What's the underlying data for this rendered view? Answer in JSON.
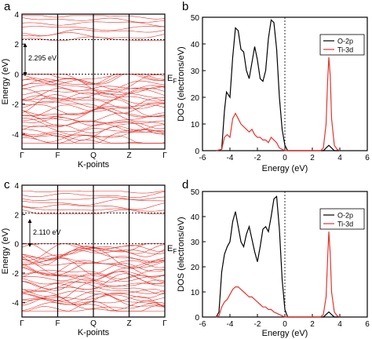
{
  "chart_data": [
    {
      "type": "line",
      "panel_letter": "a",
      "xlabel": "K-points",
      "ylabel": "Energy (eV)",
      "ylim": [
        -5,
        4
      ],
      "yticks": [
        -4,
        -2,
        0,
        2,
        4
      ],
      "k_labels": [
        "Γ",
        "F",
        "Q",
        "Z",
        "Γ"
      ],
      "band_gap_label": "2.295 eV",
      "band_gap": 2.295,
      "fermi_label": "E",
      "fermi_subscript": "F",
      "cbm": 2.295,
      "vbm": 0,
      "vb_range": [
        -4.6,
        0
      ],
      "cb_range": [
        2.3,
        3.9
      ],
      "line_color": "#e8322a"
    },
    {
      "type": "line",
      "panel_letter": "b",
      "xlabel": "Energy (eV)",
      "ylabel": "DOS (electrons/eV)",
      "xlim": [
        -6,
        6
      ],
      "ylim": [
        0,
        50
      ],
      "xticks": [
        -6,
        -4,
        -2,
        0,
        2,
        4,
        6
      ],
      "yticks": [
        0,
        10,
        20,
        30,
        40,
        50
      ],
      "legend_position": "top-right",
      "series": [
        {
          "name": "O-2p",
          "color": "#000000",
          "x": [
            -5.0,
            -4.6,
            -4.4,
            -4.25,
            -4.0,
            -3.8,
            -3.6,
            -3.4,
            -3.2,
            -3.0,
            -2.8,
            -2.6,
            -2.4,
            -2.2,
            -2.0,
            -1.8,
            -1.6,
            -1.4,
            -1.2,
            -1.0,
            -0.8,
            -0.6,
            -0.4,
            -0.2,
            0.0,
            0.2,
            0.4,
            2.8,
            3.0,
            3.2,
            3.4,
            3.6,
            4.0
          ],
          "y": [
            0,
            0.5,
            15,
            22,
            20,
            35,
            46,
            45,
            38,
            37,
            30,
            27,
            33,
            39,
            34,
            27,
            26,
            30,
            42,
            49,
            48,
            38,
            20,
            8,
            2,
            0,
            0,
            0,
            1,
            2,
            1,
            0,
            0
          ]
        },
        {
          "name": "Ti-3d",
          "color": "#e8322a",
          "x": [
            -5.0,
            -4.6,
            -4.4,
            -4.2,
            -4.0,
            -3.8,
            -3.6,
            -3.4,
            -3.2,
            -3.0,
            -2.8,
            -2.6,
            -2.4,
            -2.2,
            -2.0,
            -1.8,
            -1.6,
            -1.4,
            -1.2,
            -1.0,
            -0.8,
            -0.6,
            -0.4,
            -0.2,
            0.0,
            2.6,
            2.8,
            3.0,
            3.1,
            3.2,
            3.3,
            3.4,
            3.6,
            3.8,
            4.0
          ],
          "y": [
            0,
            0.5,
            5,
            6,
            5,
            12,
            14,
            12,
            10,
            9,
            8,
            7,
            8,
            6,
            5,
            5,
            4,
            4,
            3,
            5,
            4,
            3,
            1,
            0.5,
            0,
            0,
            1,
            10,
            25,
            35,
            28,
            12,
            2,
            0.5,
            0
          ]
        }
      ]
    },
    {
      "type": "line",
      "panel_letter": "c",
      "xlabel": "K-points",
      "ylabel": "Energy (eV)",
      "ylim": [
        -5,
        4
      ],
      "yticks": [
        -4,
        -2,
        0,
        2,
        4
      ],
      "k_labels": [
        "Γ",
        "F",
        "Q",
        "Z",
        "Γ"
      ],
      "band_gap_label": "2.110 eV",
      "band_gap": 2.11,
      "fermi_label": "E",
      "fermi_subscript": "F",
      "cbm": 2.11,
      "vbm": 0,
      "vb_range": [
        -4.6,
        0
      ],
      "cb_range": [
        2.1,
        3.6
      ],
      "line_color": "#e8322a"
    },
    {
      "type": "line",
      "panel_letter": "d",
      "xlabel": "Energy (eV)",
      "ylabel": "DOS (electrons/eV)",
      "xlim": [
        -6,
        6
      ],
      "ylim": [
        0,
        50
      ],
      "xticks": [
        -6,
        -4,
        -2,
        0,
        2,
        4,
        6
      ],
      "yticks": [
        0,
        10,
        20,
        30,
        40,
        50
      ],
      "legend_position": "top-right",
      "series": [
        {
          "name": "O-2p",
          "color": "#000000",
          "x": [
            -5.0,
            -4.8,
            -4.6,
            -4.4,
            -4.2,
            -4.0,
            -3.8,
            -3.6,
            -3.4,
            -3.2,
            -3.0,
            -2.8,
            -2.6,
            -2.4,
            -2.2,
            -2.0,
            -1.8,
            -1.6,
            -1.4,
            -1.2,
            -1.0,
            -0.8,
            -0.6,
            -0.4,
            -0.2,
            0.0,
            0.2,
            2.8,
            3.0,
            3.2,
            3.4,
            3.6,
            4.0
          ],
          "y": [
            0,
            2,
            18,
            25,
            28,
            30,
            38,
            42,
            36,
            30,
            28,
            33,
            36,
            31,
            26,
            22,
            28,
            35,
            36,
            34,
            40,
            47,
            48,
            35,
            15,
            3,
            0,
            0,
            1,
            2,
            1,
            0,
            0
          ]
        },
        {
          "name": "Ti-3d",
          "color": "#e8322a",
          "x": [
            -5.0,
            -4.8,
            -4.6,
            -4.4,
            -4.2,
            -4.0,
            -3.8,
            -3.6,
            -3.4,
            -3.2,
            -3.0,
            -2.8,
            -2.6,
            -2.4,
            -2.2,
            -2.0,
            -1.8,
            -1.6,
            -1.4,
            -1.2,
            -1.0,
            -0.8,
            -0.6,
            -0.4,
            -0.2,
            0.0,
            2.6,
            2.8,
            3.0,
            3.1,
            3.2,
            3.3,
            3.4,
            3.6,
            3.8,
            4.0
          ],
          "y": [
            0,
            0.5,
            4,
            6,
            7,
            9,
            11,
            12,
            12,
            11,
            10,
            9,
            8,
            8,
            7,
            6,
            5,
            4,
            4,
            3,
            3,
            2,
            1.5,
            1,
            0.5,
            0,
            0,
            1,
            8,
            22,
            34,
            25,
            10,
            2,
            0.5,
            0
          ]
        }
      ]
    }
  ]
}
